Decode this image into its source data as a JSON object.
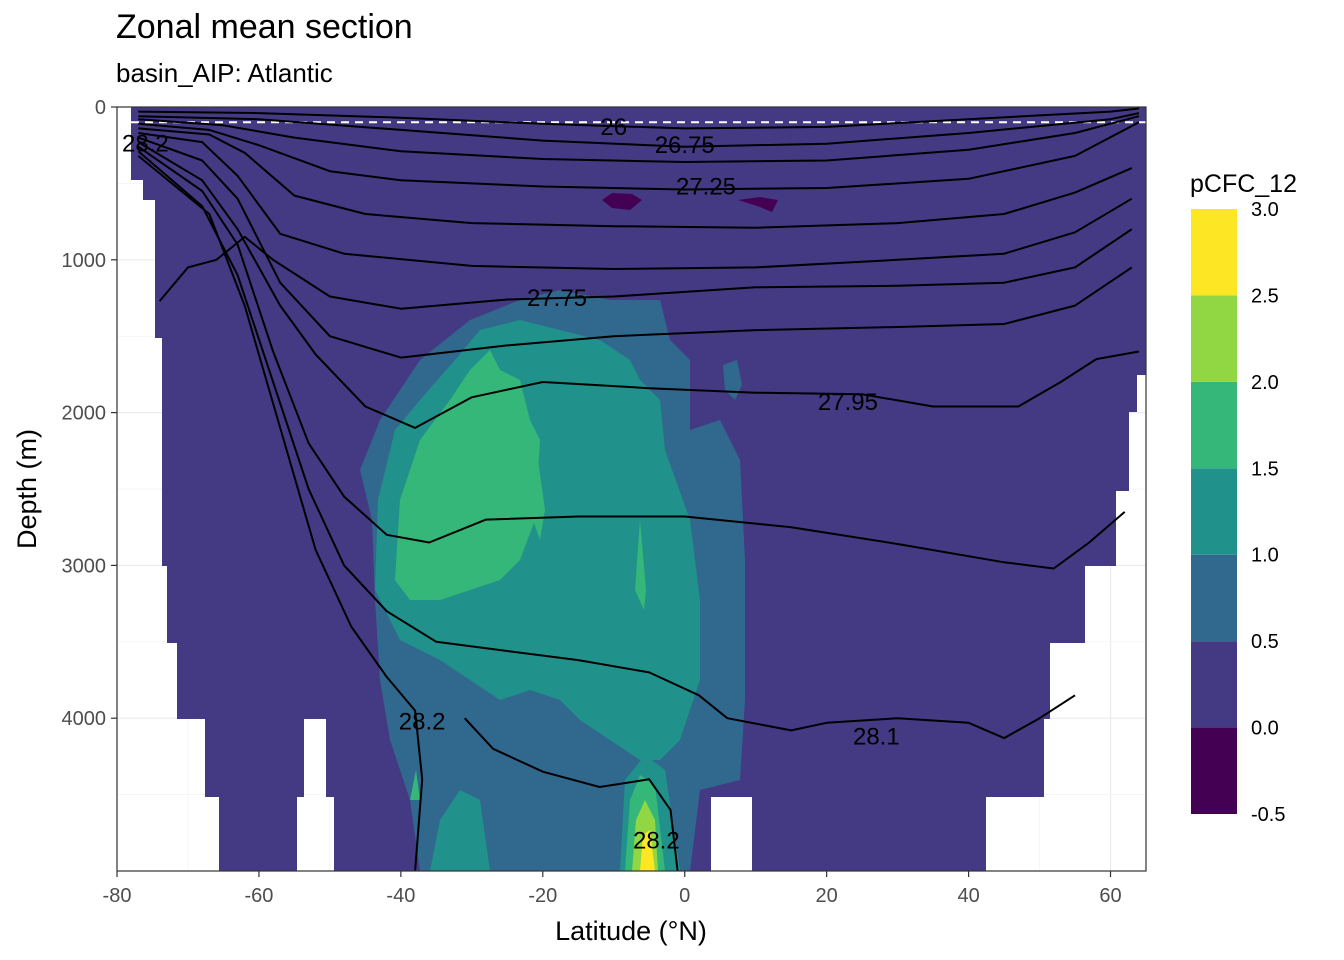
{
  "chart_data": {
    "type": "heatmap",
    "title": "Zonal mean section",
    "subtitle": "basin_AIP: Atlantic",
    "xlabel": "Latitude (°N)",
    "ylabel": "Depth (m)",
    "xlim": [
      -80,
      65
    ],
    "ylim": [
      0,
      5000
    ],
    "y_reversed": true,
    "x_ticks": [
      -80,
      -60,
      -40,
      -20,
      0,
      20,
      40,
      60
    ],
    "y_ticks": [
      0,
      1000,
      2000,
      3000,
      4000
    ],
    "grid": true,
    "reference_line": {
      "depth": 100,
      "style": "dashed",
      "color": "#ffffff"
    },
    "legend": {
      "title": "pCFC_12",
      "position": "right",
      "breaks": [
        -0.5,
        0.0,
        0.5,
        1.0,
        1.5,
        2.0,
        2.5,
        3.0
      ],
      "labels": [
        "-0.5",
        "0.0",
        "0.5",
        "1.0",
        "1.5",
        "2.0",
        "2.5",
        "3.0"
      ],
      "colors": [
        "#440154",
        "#443983",
        "#31688e",
        "#21918c",
        "#35b779",
        "#90d743",
        "#fde725"
      ]
    },
    "fill_regions": [
      {
        "level": "0.0-0.5",
        "note": "background basin fill"
      },
      {
        "level": "0.5-1.0",
        "lat_range": [
          -45,
          10
        ],
        "depth_range": [
          1100,
          5000
        ]
      },
      {
        "level": "1.0-1.5",
        "lat_range": [
          -43,
          9
        ],
        "depth_range": [
          1300,
          4500
        ]
      },
      {
        "level": "1.5-2.0",
        "lat_range": [
          -42,
          -25
        ],
        "depth_range": [
          1500,
          3500
        ]
      },
      {
        "level": "2.0-2.5",
        "lat_range": [
          -9,
          -3
        ],
        "depth_range": [
          4500,
          5000
        ]
      },
      {
        "level": "2.5-3.0",
        "lat_range": [
          -6,
          -4
        ],
        "depth_range": [
          4800,
          5000
        ]
      },
      {
        "level": "-0.5-0.0",
        "lat_range": [
          -12,
          -7
        ],
        "depth_range": [
          550,
          700
        ]
      },
      {
        "level": "-0.5-0.0",
        "lat_range": [
          8,
          13
        ],
        "depth_range": [
          600,
          700
        ]
      }
    ],
    "isopycnals": [
      {
        "label": "26",
        "label_at": [
          -10,
          130
        ],
        "points": [
          [
            -77,
            30
          ],
          [
            -60,
            40
          ],
          [
            -40,
            70
          ],
          [
            -20,
            110
          ],
          [
            0,
            140
          ],
          [
            20,
            130
          ],
          [
            40,
            80
          ],
          [
            60,
            30
          ],
          [
            64,
            10
          ]
        ]
      },
      {
        "label": "",
        "points": [
          [
            -77,
            60
          ],
          [
            -60,
            80
          ],
          [
            -40,
            150
          ],
          [
            -20,
            220
          ],
          [
            0,
            260
          ],
          [
            20,
            240
          ],
          [
            40,
            170
          ],
          [
            60,
            80
          ],
          [
            64,
            40
          ]
        ]
      },
      {
        "label": "26.75",
        "label_at": [
          0,
          250
        ],
        "points": [
          [
            -77,
            80
          ],
          [
            -65,
            120
          ],
          [
            -55,
            200
          ],
          [
            -40,
            290
          ],
          [
            -20,
            340
          ],
          [
            0,
            360
          ],
          [
            20,
            350
          ],
          [
            40,
            280
          ],
          [
            55,
            170
          ],
          [
            64,
            60
          ]
        ]
      },
      {
        "label": "",
        "points": [
          [
            -77,
            110
          ],
          [
            -67,
            150
          ],
          [
            -60,
            250
          ],
          [
            -50,
            420
          ],
          [
            -40,
            480
          ],
          [
            -20,
            520
          ],
          [
            0,
            540
          ],
          [
            20,
            530
          ],
          [
            40,
            470
          ],
          [
            55,
            320
          ],
          [
            64,
            100
          ]
        ]
      },
      {
        "label": "27.25",
        "label_at": [
          3,
          520
        ],
        "points": [
          [
            -77,
            140
          ],
          [
            -67,
            180
          ],
          [
            -62,
            300
          ],
          [
            -55,
            580
          ],
          [
            -45,
            700
          ],
          [
            -30,
            760
          ],
          [
            -10,
            780
          ],
          [
            10,
            790
          ],
          [
            30,
            760
          ],
          [
            45,
            700
          ],
          [
            55,
            560
          ],
          [
            63,
            400
          ]
        ]
      },
      {
        "label": "",
        "points": [
          [
            -77,
            170
          ],
          [
            -68,
            230
          ],
          [
            -63,
            450
          ],
          [
            -57,
            830
          ],
          [
            -48,
            960
          ],
          [
            -30,
            1040
          ],
          [
            -10,
            1060
          ],
          [
            10,
            1050
          ],
          [
            30,
            1000
          ],
          [
            45,
            960
          ],
          [
            55,
            820
          ],
          [
            63,
            600
          ]
        ]
      },
      {
        "label": "27.75",
        "label_at": [
          -18,
          1250
        ],
        "points": [
          [
            -74,
            1270
          ],
          [
            -70,
            1050
          ],
          [
            -66,
            1000
          ],
          [
            -62,
            850
          ],
          [
            -58,
            1000
          ],
          [
            -50,
            1240
          ],
          [
            -40,
            1320
          ],
          [
            -25,
            1260
          ],
          [
            -10,
            1240
          ],
          [
            10,
            1180
          ],
          [
            30,
            1170
          ],
          [
            45,
            1150
          ],
          [
            55,
            1050
          ],
          [
            63,
            800
          ]
        ]
      },
      {
        "label": "",
        "points": [
          [
            -77,
            200
          ],
          [
            -68,
            350
          ],
          [
            -63,
            600
          ],
          [
            -57,
            1150
          ],
          [
            -50,
            1500
          ],
          [
            -40,
            1640
          ],
          [
            -25,
            1560
          ],
          [
            -10,
            1500
          ],
          [
            10,
            1460
          ],
          [
            30,
            1440
          ],
          [
            45,
            1420
          ],
          [
            55,
            1300
          ],
          [
            63,
            1050
          ]
        ]
      },
      {
        "label": "27.95",
        "label_at": [
          23,
          1930
        ],
        "points": [
          [
            -77,
            230
          ],
          [
            -68,
            480
          ],
          [
            -63,
            800
          ],
          [
            -57,
            1300
          ],
          [
            -52,
            1620
          ],
          [
            -45,
            1960
          ],
          [
            -38,
            2100
          ],
          [
            -30,
            1900
          ],
          [
            -20,
            1800
          ],
          [
            -5,
            1840
          ],
          [
            10,
            1870
          ],
          [
            25,
            1880
          ],
          [
            35,
            1960
          ],
          [
            47,
            1960
          ],
          [
            53,
            1800
          ],
          [
            58,
            1650
          ],
          [
            64,
            1600
          ]
        ]
      },
      {
        "label": "",
        "points": [
          [
            -77,
            260
          ],
          [
            -68,
            550
          ],
          [
            -63,
            900
          ],
          [
            -58,
            1600
          ],
          [
            -53,
            2200
          ],
          [
            -48,
            2550
          ],
          [
            -42,
            2800
          ],
          [
            -36,
            2850
          ],
          [
            -28,
            2700
          ],
          [
            -15,
            2680
          ],
          [
            0,
            2680
          ],
          [
            15,
            2750
          ],
          [
            30,
            2860
          ],
          [
            45,
            2980
          ],
          [
            52,
            3020
          ],
          [
            57,
            2850
          ],
          [
            62,
            2650
          ]
        ]
      },
      {
        "label": "28.1",
        "label_at": [
          27,
          4120
        ],
        "points": [
          [
            -77,
            290
          ],
          [
            -68,
            650
          ],
          [
            -63,
            1100
          ],
          [
            -58,
            1800
          ],
          [
            -53,
            2500
          ],
          [
            -48,
            3000
          ],
          [
            -42,
            3300
          ],
          [
            -35,
            3500
          ],
          [
            -25,
            3560
          ],
          [
            -15,
            3620
          ],
          [
            -5,
            3700
          ],
          [
            2,
            3850
          ],
          [
            6,
            4000
          ],
          [
            15,
            4080
          ],
          [
            20,
            4030
          ],
          [
            30,
            4000
          ],
          [
            40,
            4030
          ],
          [
            45,
            4130
          ],
          [
            50,
            4000
          ],
          [
            55,
            3850
          ]
        ]
      },
      {
        "label": "28.2",
        "label_at": [
          -37,
          4020
        ],
        "points": [
          [
            -77,
            320
          ],
          [
            -67,
            700
          ],
          [
            -62,
            1300
          ],
          [
            -57,
            2100
          ],
          [
            -52,
            2900
          ],
          [
            -47,
            3400
          ],
          [
            -42,
            3730
          ],
          [
            -38,
            3950
          ],
          [
            -37,
            4400
          ],
          [
            -38,
            5000
          ]
        ]
      },
      {
        "label": "28.2",
        "label_at": [
          -4,
          4800
        ],
        "points": [
          [
            -31,
            4000
          ],
          [
            -27,
            4200
          ],
          [
            -20,
            4350
          ],
          [
            -12,
            4450
          ],
          [
            -5,
            4400
          ],
          [
            -2,
            4600
          ],
          [
            -1,
            5000
          ]
        ]
      },
      {
        "label": "28.2",
        "label_at": [
          -76,
          240
        ],
        "points": []
      }
    ]
  }
}
